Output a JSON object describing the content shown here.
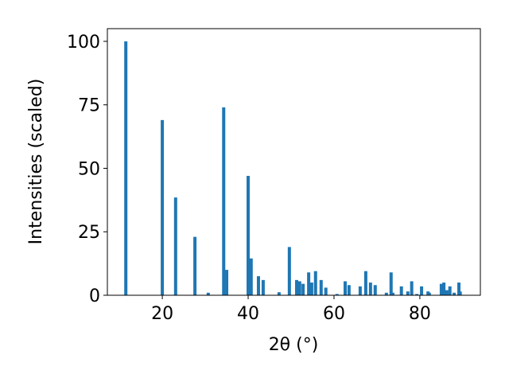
{
  "chart_data": {
    "type": "bar",
    "xlabel": "2θ (°)",
    "ylabel": "Intensities (scaled)",
    "x": [
      11.5,
      20.0,
      23.1,
      27.6,
      30.7,
      34.3,
      35.0,
      40.0,
      40.7,
      42.4,
      43.5,
      47.2,
      49.6,
      51.3,
      52.0,
      52.8,
      54.1,
      54.8,
      55.7,
      57.0,
      58.1,
      60.7,
      62.6,
      63.5,
      66.1,
      67.4,
      68.5,
      69.6,
      72.2,
      73.3,
      73.7,
      75.7,
      77.2,
      78.1,
      79.3,
      80.4,
      81.9,
      82.2,
      85.0,
      85.6,
      86.3,
      87.0,
      88.0,
      89.1,
      89.4
    ],
    "values": [
      100,
      69,
      38.5,
      23,
      1,
      74,
      10,
      47,
      14.5,
      7.5,
      6,
      1.2,
      19,
      6,
      5.5,
      4.5,
      9,
      5,
      9.5,
      6,
      3,
      0.5,
      5.5,
      4,
      3.5,
      9.5,
      5,
      4,
      1,
      9,
      1,
      3.5,
      1.5,
      5.5,
      0.5,
      3.5,
      1.5,
      1,
      4.5,
      5,
      2,
      3.5,
      1,
      5,
      1.5
    ],
    "color": "#1f77b4",
    "xlim": [
      7.2,
      94.1
    ],
    "xticks": [
      20,
      40,
      60,
      80
    ],
    "ylim": [
      0,
      105
    ],
    "yticks": [
      0,
      25,
      50,
      75,
      100
    ]
  }
}
